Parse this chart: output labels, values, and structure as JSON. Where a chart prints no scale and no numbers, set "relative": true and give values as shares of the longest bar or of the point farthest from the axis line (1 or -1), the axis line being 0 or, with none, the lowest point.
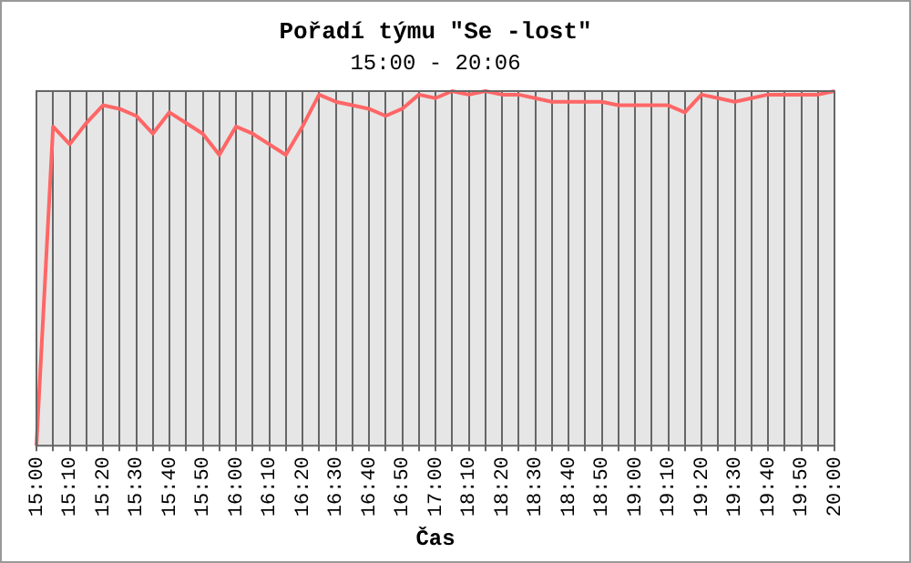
{
  "chart_data": {
    "type": "line",
    "title": "Pořadí týmu \"Se -lost\"",
    "subtitle": "15:00 - 20:06",
    "xlabel": "Čas",
    "relative": true,
    "grid": "x",
    "tick_labels": "x",
    "marker": "none",
    "line_style": "solid",
    "categories": [
      "15:00",
      null,
      "15:10",
      null,
      "15:20",
      null,
      "15:30",
      null,
      "15:40",
      null,
      "15:50",
      null,
      "16:00",
      null,
      "16:10",
      null,
      "16:20",
      null,
      "16:30",
      null,
      "16:40",
      null,
      "16:50",
      null,
      "17:00",
      null,
      "18:10",
      null,
      "18:20",
      null,
      "18:30",
      null,
      "18:40",
      null,
      "18:50",
      null,
      "19:00",
      null,
      "19:10",
      null,
      "19:20",
      null,
      "19:30",
      null,
      "19:40",
      null,
      "19:50",
      null,
      "20:00"
    ],
    "series": [
      {
        "color": "#ff6666",
        "values": [
          0,
          0.9,
          0.85,
          0.91,
          0.96,
          0.95,
          0.93,
          0.88,
          0.94,
          0.91,
          0.88,
          0.82,
          0.9,
          0.88,
          0.85,
          0.82,
          0.9,
          0.99,
          0.97,
          0.96,
          0.95,
          0.93,
          0.95,
          0.99,
          0.98,
          1,
          0.99,
          1,
          0.99,
          0.99,
          0.98,
          0.97,
          0.97,
          0.97,
          0.97,
          0.96,
          0.96,
          0.96,
          0.96,
          0.94,
          0.99,
          0.98,
          0.97,
          0.98,
          0.99,
          0.99,
          0.99,
          0.99,
          1
        ]
      }
    ]
  }
}
